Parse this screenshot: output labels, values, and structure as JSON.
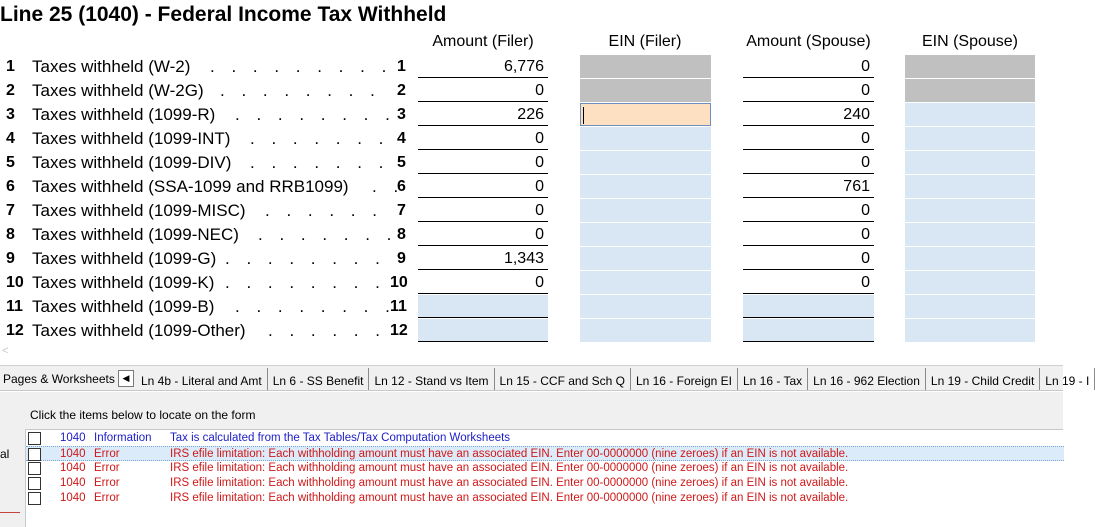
{
  "title": "Line 25 (1040) - Federal Income Tax Withheld",
  "columns": {
    "amount_filer": "Amount (Filer)",
    "ein_filer": "EIN (Filer)",
    "amount_spouse": "Amount (Spouse)",
    "ein_spouse": "EIN (Spouse)"
  },
  "rows": [
    {
      "num": "1",
      "label": "Taxes withheld (W-2)",
      "dots": ". . . . . . . . .",
      "line": "1",
      "amount_filer": "6,776",
      "amount_spouse": "0"
    },
    {
      "num": "2",
      "label": "Taxes withheld (W-2G)",
      "dots": ". . . . . . . .",
      "line": "2",
      "amount_filer": "0",
      "amount_spouse": "0"
    },
    {
      "num": "3",
      "label": "Taxes withheld (1099-R)",
      "dots": ". . . . . . . .",
      "line": "3",
      "amount_filer": "226",
      "amount_spouse": "240"
    },
    {
      "num": "4",
      "label": "Taxes withheld (1099-INT)",
      "dots": ". . . . . . .",
      "line": "4",
      "amount_filer": "0",
      "amount_spouse": "0"
    },
    {
      "num": "5",
      "label": "Taxes withheld (1099-DIV)",
      "dots": ". . . . . . .",
      "line": "5",
      "amount_filer": "0",
      "amount_spouse": "0"
    },
    {
      "num": "6",
      "label": "Taxes withheld (SSA-1099 and RRB1099)",
      "dots": ". .",
      "line": "6",
      "amount_filer": "0",
      "amount_spouse": "761"
    },
    {
      "num": "7",
      "label": "Taxes withheld (1099-MISC)",
      "dots": ". . . . . .",
      "line": "7",
      "amount_filer": "0",
      "amount_spouse": "0"
    },
    {
      "num": "8",
      "label": "Taxes withheld (1099-NEC)",
      "dots": ". . . . . . .",
      "line": "8",
      "amount_filer": "0",
      "amount_spouse": "0"
    },
    {
      "num": "9",
      "label": "Taxes withheld (1099-G)",
      "dots": ". . . . . . . .",
      "line": "9",
      "amount_filer": "1,343",
      "amount_spouse": "0"
    },
    {
      "num": "10",
      "label": "Taxes withheld (1099-K)",
      "dots": ". . . . . . . .",
      "line": "10",
      "amount_filer": "0",
      "amount_spouse": "0"
    },
    {
      "num": "11",
      "label": "Taxes withheld (1099-B)",
      "dots": ". . . . . . . .",
      "line": "11",
      "amount_filer": "",
      "amount_spouse": ""
    },
    {
      "num": "12",
      "label": "Taxes withheld (1099-Other)",
      "dots": ". . . . . .",
      "line": "12",
      "amount_filer": "",
      "amount_spouse": ""
    }
  ],
  "tabbar": {
    "left_label": "Pages & Worksheets",
    "tabs": [
      "Ln 4b - Literal and Amt",
      "Ln 6 - SS Benefit",
      "Ln 12 - Stand vs Item",
      "Ln 15 - CCF and Sch Q",
      "Ln 16 - Foreign EI",
      "Ln 16 - Tax",
      "Ln 16 - 962 Election",
      "Ln 19 - Child Credit",
      "Ln 19 - I"
    ]
  },
  "messages": {
    "instruction": "Click the items below to locate on the form",
    "side_label": "al",
    "items": [
      {
        "form": "1040",
        "type": "Information",
        "text": "Tax is calculated from the Tax Tables/Tax Computation Worksheets",
        "kind": "info"
      },
      {
        "form": "1040",
        "type": "Error",
        "text": "IRS efile limitation: Each withholding amount must have an associated EIN. Enter 00-0000000 (nine zeroes) if an EIN is not available.",
        "kind": "error"
      },
      {
        "form": "1040",
        "type": "Error",
        "text": "IRS efile limitation: Each withholding amount must have an associated EIN. Enter 00-0000000 (nine zeroes) if an EIN is not available.",
        "kind": "error"
      },
      {
        "form": "1040",
        "type": "Error",
        "text": "IRS efile limitation: Each withholding amount must have an associated EIN. Enter 00-0000000 (nine zeroes) if an EIN is not available.",
        "kind": "error"
      },
      {
        "form": "1040",
        "type": "Error",
        "text": "IRS efile limitation: Each withholding amount must have an associated EIN. Enter 00-0000000 (nine zeroes) if an EIN is not available.",
        "kind": "error"
      }
    ]
  },
  "colors": {
    "field_blue": "#d9e6f4",
    "field_gray": "#c0c0c0",
    "field_active": "#fde0c2",
    "info_text": "#1c1cc8",
    "error_text": "#d01818"
  }
}
